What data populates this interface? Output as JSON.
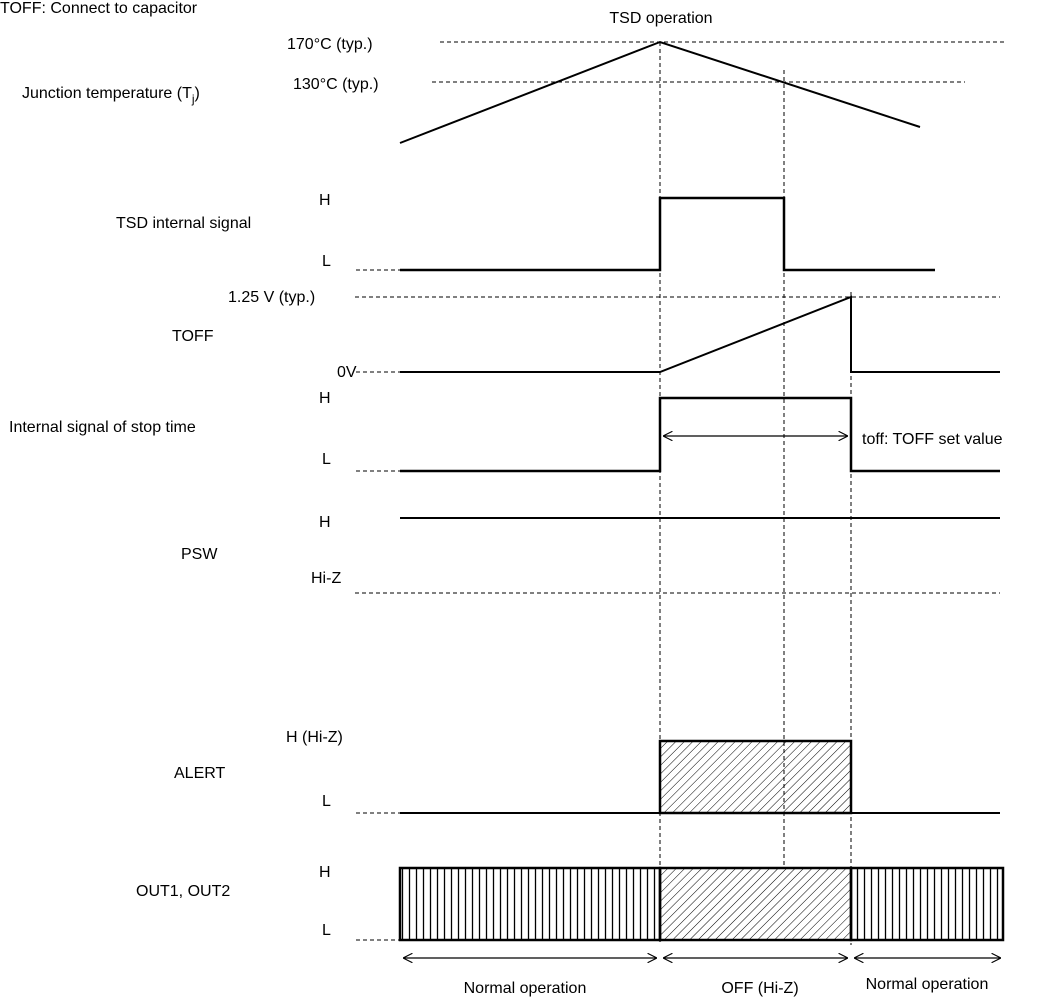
{
  "header": {
    "top_left": "TOFF: Connect to capacitor",
    "tsd_operation": "TSD operation"
  },
  "junction": {
    "label_main": "Junction temperature (T",
    "label_sub": "j",
    "label_end": ")",
    "level_170": "170°C (typ.)",
    "level_130": "130°C (typ.)"
  },
  "tsd_signal": {
    "label": "TSD internal signal",
    "high": "H",
    "low": "L"
  },
  "toff": {
    "label": "TOFF",
    "high": "1.25 V (typ.)",
    "low": "0V"
  },
  "stop_time": {
    "label": "Internal signal of stop time",
    "high": "H",
    "low": "L",
    "annotation": "toff: TOFF set value"
  },
  "psw": {
    "label": "PSW",
    "high": "H",
    "low": "Hi-Z"
  },
  "alert": {
    "label": "ALERT",
    "high": "H (Hi-Z)",
    "low": "L"
  },
  "outputs": {
    "label": "OUT1, OUT2",
    "high": "H",
    "low": "L"
  },
  "phases": {
    "normal_left": "Normal operation",
    "off": "OFF (Hi-Z)",
    "normal_right": "Normal operation"
  },
  "colors": {
    "line": "#000000",
    "background": "#ffffff"
  }
}
